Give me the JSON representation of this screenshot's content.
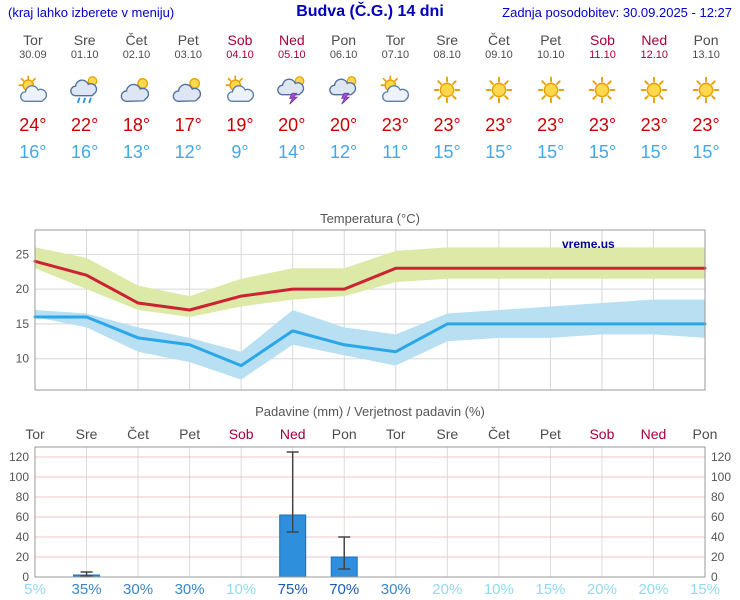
{
  "header": {
    "hint": "(kraj lahko izberete v meniju)",
    "title": "Budva (Č.G.) 14 dni",
    "updated": "Zadnja posodobitev: 30.09.2025 - 12:27"
  },
  "colors": {
    "link_blue": "#0000cc",
    "weekday_text": "#4d4d4d",
    "weekend_text": "#a6003c",
    "high_temp_text": "#cc0000",
    "low_temp_text": "#44a8e8",
    "bar_blue": "#2e8fdd",
    "temp_high_line": "#cc2233",
    "temp_low_line": "#2aa7e8"
  },
  "forecast": {
    "days": [
      {
        "name": "Tor",
        "date": "30.09",
        "weekend": false,
        "icon": "partly-cloudy",
        "high": "24°",
        "low": "16°"
      },
      {
        "name": "Sre",
        "date": "01.10",
        "weekend": false,
        "icon": "rain",
        "high": "22°",
        "low": "16°"
      },
      {
        "name": "Čet",
        "date": "02.10",
        "weekend": false,
        "icon": "mostly-cloudy",
        "high": "18°",
        "low": "13°"
      },
      {
        "name": "Pet",
        "date": "03.10",
        "weekend": false,
        "icon": "mostly-cloudy",
        "high": "17°",
        "low": "12°"
      },
      {
        "name": "Sob",
        "date": "04.10",
        "weekend": true,
        "icon": "partly-cloudy",
        "high": "19°",
        "low": "9°"
      },
      {
        "name": "Ned",
        "date": "05.10",
        "weekend": true,
        "icon": "thunderstorm",
        "high": "20°",
        "low": "14°"
      },
      {
        "name": "Pon",
        "date": "06.10",
        "weekend": false,
        "icon": "thunderstorm",
        "high": "20°",
        "low": "12°"
      },
      {
        "name": "Tor",
        "date": "07.10",
        "weekend": false,
        "icon": "partly-cloudy",
        "high": "23°",
        "low": "11°"
      },
      {
        "name": "Sre",
        "date": "08.10",
        "weekend": false,
        "icon": "sunny",
        "high": "23°",
        "low": "15°"
      },
      {
        "name": "Čet",
        "date": "09.10",
        "weekend": false,
        "icon": "sunny",
        "high": "23°",
        "low": "15°"
      },
      {
        "name": "Pet",
        "date": "10.10",
        "weekend": false,
        "icon": "sunny",
        "high": "23°",
        "low": "15°"
      },
      {
        "name": "Sob",
        "date": "11.10",
        "weekend": true,
        "icon": "sunny",
        "high": "23°",
        "low": "15°"
      },
      {
        "name": "Ned",
        "date": "12.10",
        "weekend": true,
        "icon": "sunny",
        "high": "23°",
        "low": "15°"
      },
      {
        "name": "Pon",
        "date": "13.10",
        "weekend": false,
        "icon": "sunny",
        "high": "23°",
        "low": "15°"
      }
    ]
  },
  "chart_data": [
    {
      "type": "line",
      "title": "Temperatura (°C)",
      "watermark": "vreme.us",
      "x_labels": [
        "Tor",
        "Sre",
        "Čet",
        "Pet",
        "Sob",
        "Ned",
        "Pon",
        "Tor",
        "Sre",
        "Čet",
        "Pet",
        "Sob",
        "Ned",
        "Pon"
      ],
      "ylim": [
        5.5,
        28.5
      ],
      "yticks": [
        10,
        15,
        20,
        25
      ],
      "grid": true,
      "legend_position": "none",
      "series": [
        {
          "name": "max-temperature",
          "color": "#cc2233",
          "values": [
            24,
            22,
            18,
            17,
            19,
            20,
            20,
            23,
            23,
            23,
            23,
            23,
            23,
            23
          ],
          "band_high": [
            26,
            24.5,
            20.5,
            19,
            21.5,
            23,
            23,
            25.5,
            26,
            26,
            26,
            26,
            26,
            26
          ],
          "band_low": [
            23,
            20,
            17,
            16,
            17.5,
            18.5,
            19,
            21,
            21.5,
            21.5,
            21.5,
            21.5,
            21.5,
            21.5
          ],
          "band_color": "#dde9a6"
        },
        {
          "name": "min-temperature",
          "color": "#2aa7e8",
          "values": [
            16,
            16,
            13,
            12,
            9,
            14,
            12,
            11,
            15,
            15,
            15,
            15,
            15,
            15
          ],
          "band_high": [
            17,
            16.5,
            14.5,
            13,
            11,
            17,
            14.5,
            13.5,
            16.5,
            17,
            17.5,
            18,
            18.5,
            18.5
          ],
          "band_low": [
            16,
            14.5,
            11,
            9.5,
            7,
            12,
            10.5,
            9,
            12.5,
            13,
            13,
            13.5,
            13.5,
            13
          ],
          "band_color": "#b8dff2"
        }
      ]
    },
    {
      "type": "bar",
      "title": "Padavine (mm) / Verjetnost padavin (%)",
      "categories": [
        "Tor",
        "Sre",
        "Čet",
        "Pet",
        "Sob",
        "Ned",
        "Pon",
        "Tor",
        "Sre",
        "Čet",
        "Pet",
        "Sob",
        "Ned",
        "Pon"
      ],
      "weekend_flags": [
        false,
        false,
        false,
        false,
        true,
        true,
        false,
        false,
        false,
        false,
        false,
        true,
        true,
        false
      ],
      "values": [
        0,
        2,
        0,
        0,
        0,
        62,
        20,
        0,
        0,
        0,
        0,
        0,
        0,
        0
      ],
      "whisker_min": [
        0,
        1,
        0,
        0,
        0,
        45,
        8,
        0,
        0,
        0,
        0,
        0,
        0,
        0
      ],
      "whisker_max": [
        0,
        5,
        0,
        0,
        0,
        125,
        40,
        0,
        0,
        0,
        0,
        0,
        0,
        0
      ],
      "probabilities_pct": [
        5,
        35,
        30,
        30,
        10,
        75,
        70,
        30,
        20,
        10,
        15,
        20,
        20,
        15
      ],
      "ylim": [
        0,
        130
      ],
      "yticks": [
        0,
        20,
        40,
        60,
        80,
        100,
        120
      ],
      "bar_color": "#2e8fdd",
      "grid": true,
      "legend_position": "none"
    }
  ]
}
